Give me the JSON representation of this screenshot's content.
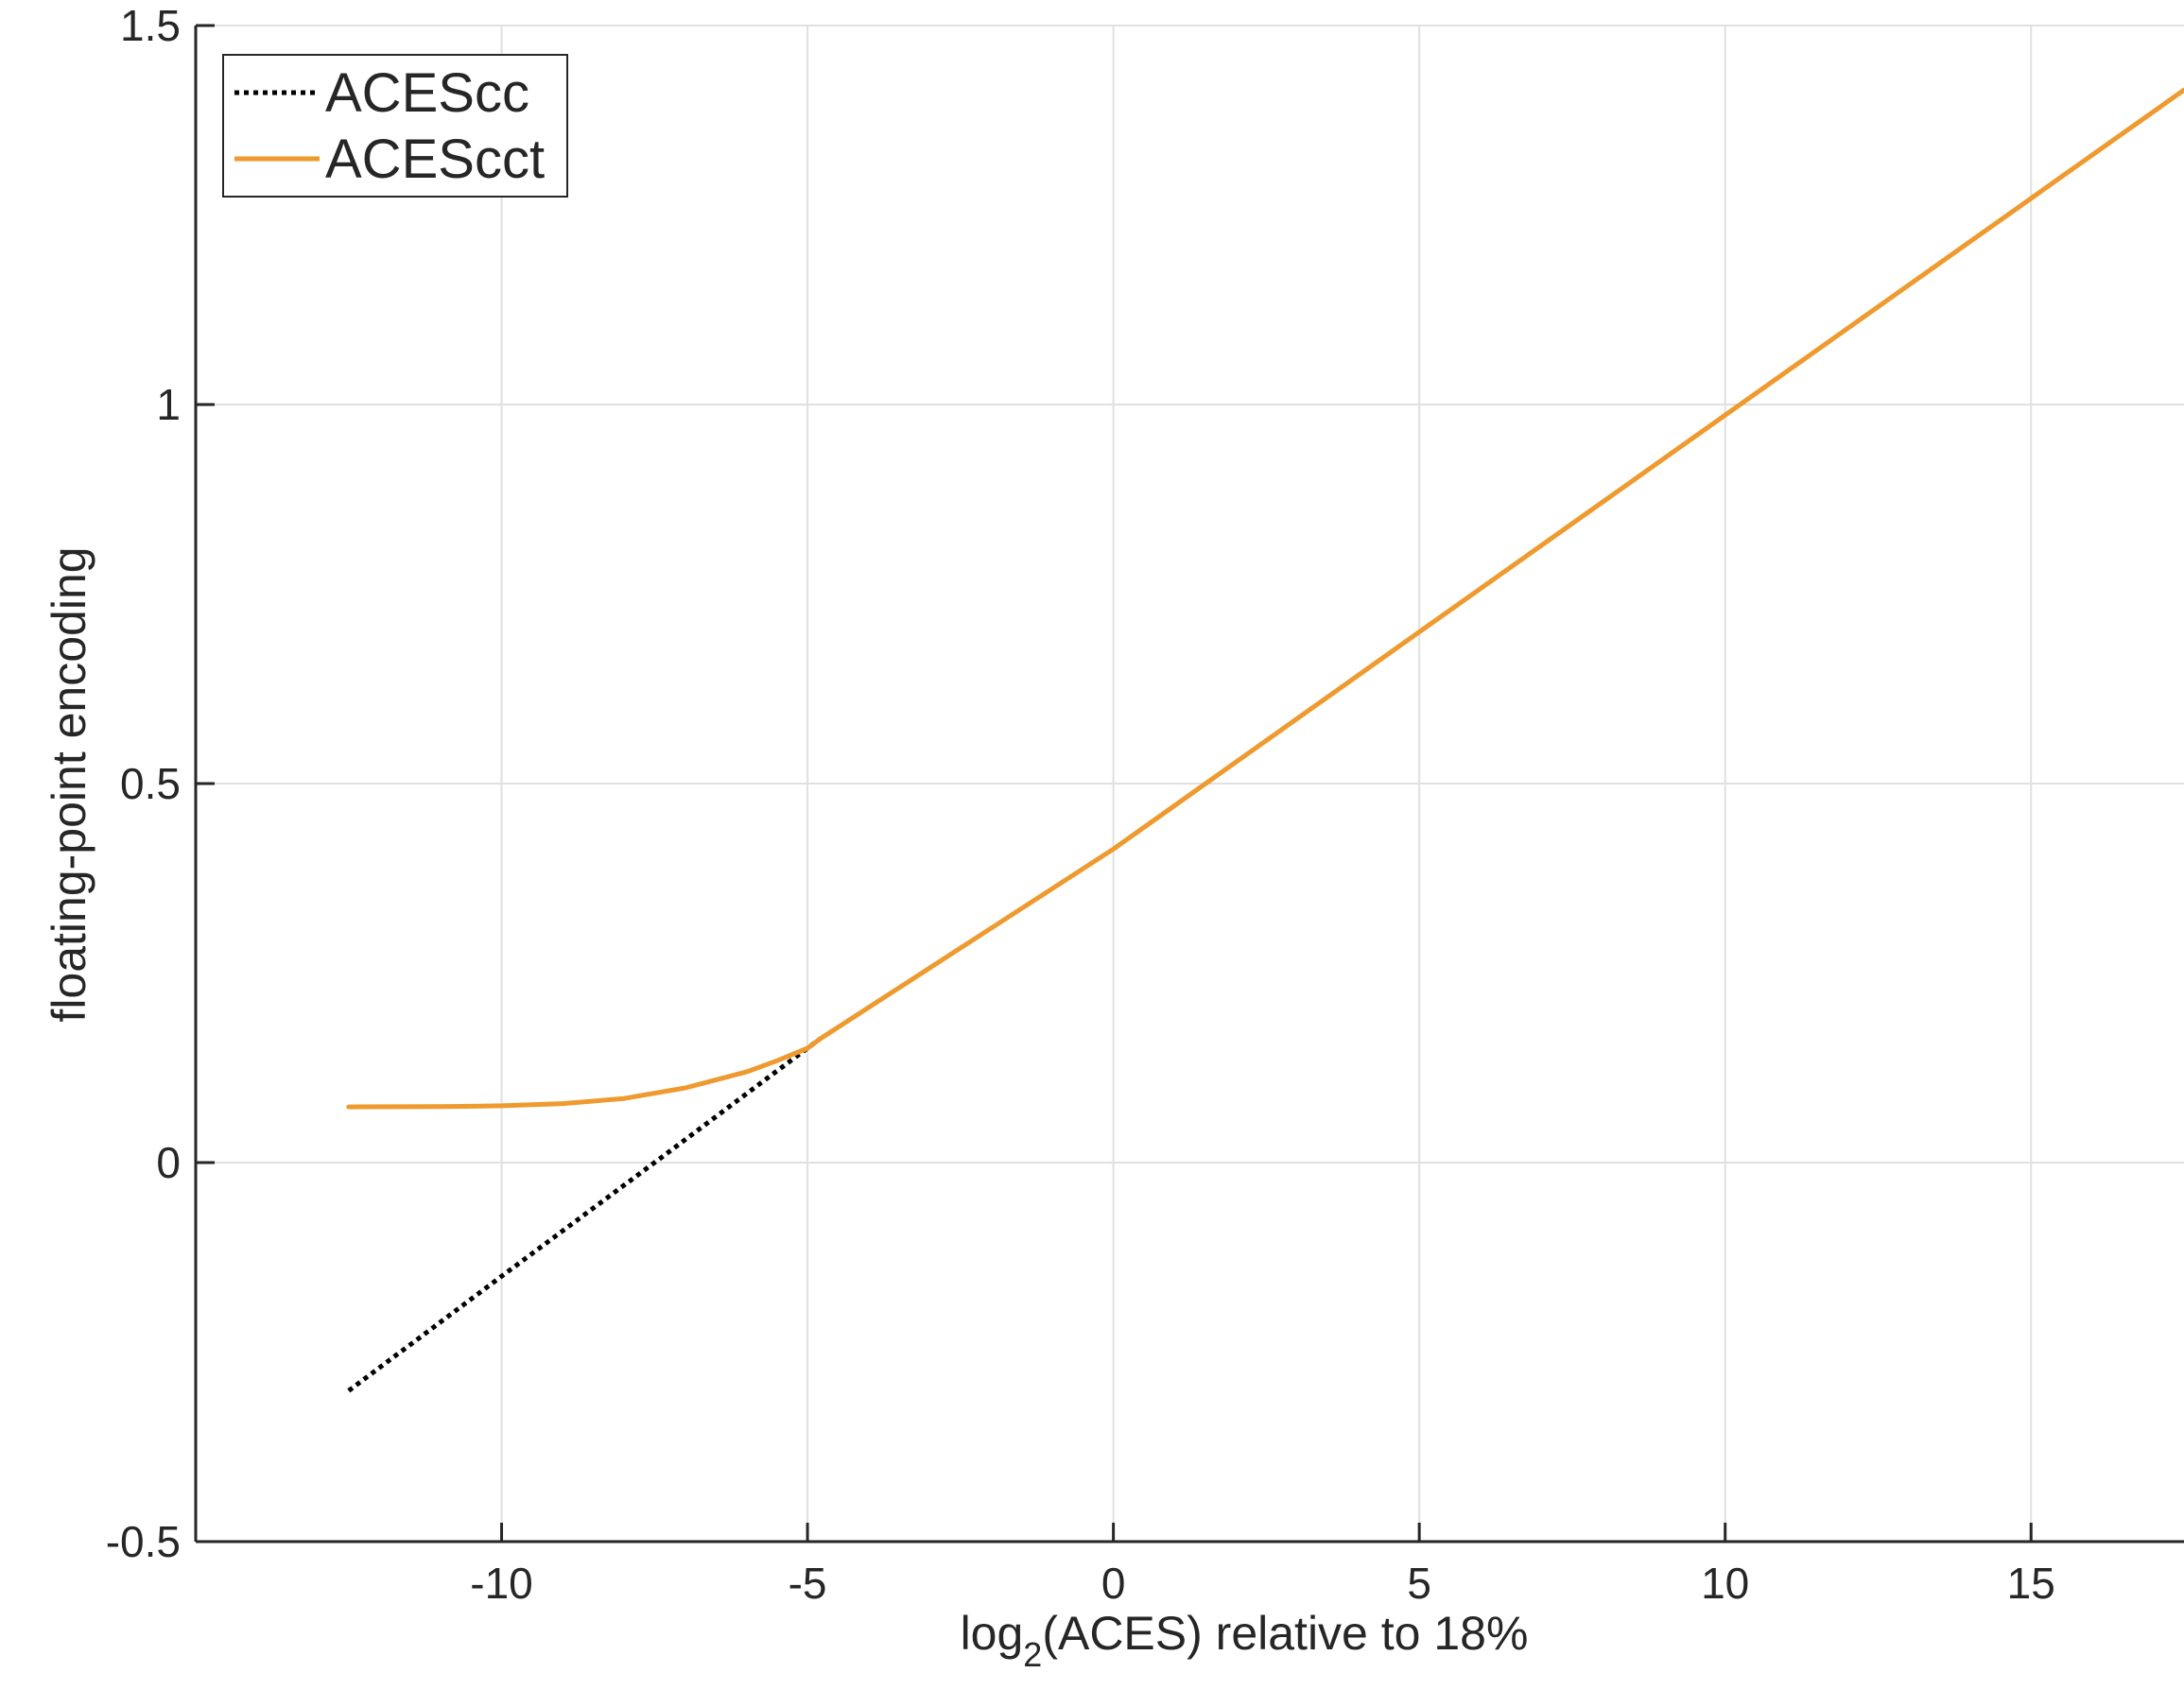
{
  "chart_data": {
    "type": "line",
    "title": "",
    "xlabel_parts": {
      "pre": "log",
      "sub": "2",
      "post": "(ACES) relative to 18%"
    },
    "ylabel": "floating-point encoding",
    "xlim": [
      -15,
      17.5
    ],
    "ylim": [
      -0.5,
      1.5
    ],
    "xticks": [
      -10,
      -5,
      0,
      5,
      10,
      15
    ],
    "xtick_labels": [
      "-10",
      "-5",
      "0",
      "5",
      "10",
      "15"
    ],
    "yticks": [
      -0.5,
      0,
      0.5,
      1,
      1.5
    ],
    "ytick_labels": [
      "-0.5",
      "0",
      "0.5",
      "1",
      "1.5"
    ],
    "grid": true,
    "legend_position": "top-left",
    "series": [
      {
        "name": "ACEScc",
        "color": "#000000",
        "style": "dotted",
        "x": [
          -12.5,
          -10,
          -7.5,
          -5,
          -4.8
        ],
        "y": [
          -0.301,
          -0.15,
          0.0,
          0.151,
          0.163
        ]
      },
      {
        "name": "ACEScct",
        "color": "#EE9A2E",
        "style": "solid",
        "x": [
          -12.5,
          -11,
          -10,
          -9,
          -8,
          -7,
          -6,
          -5.5,
          -5,
          -4.8,
          0,
          5,
          10,
          15,
          17.5
        ],
        "y": [
          0.0734,
          0.0738,
          0.0749,
          0.0778,
          0.0846,
          0.0985,
          0.1196,
          0.1343,
          0.1509,
          0.1628,
          0.4136,
          0.7,
          0.986,
          1.272,
          1.415
        ]
      }
    ]
  }
}
